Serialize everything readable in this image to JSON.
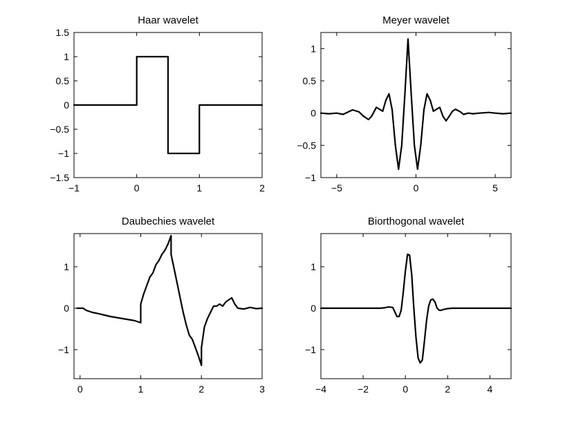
{
  "chart_data": [
    {
      "type": "line",
      "title": "Haar wavelet",
      "xlim": [
        -1,
        2
      ],
      "ylim": [
        -1.5,
        1.5
      ],
      "xticks": [
        -1,
        0,
        1,
        2
      ],
      "xtick_labels": [
        "−1",
        "0",
        "1",
        "2"
      ],
      "yticks": [
        1.5,
        1,
        0.5,
        0,
        -0.5,
        -1,
        -1.5
      ],
      "ytick_labels": [
        "1.5",
        "1",
        "0.5",
        "0",
        "−0.5",
        "−1",
        "−1.5"
      ],
      "series": [
        {
          "x": [
            -1,
            0,
            0,
            0.5,
            0.5,
            1,
            1,
            2
          ],
          "y": [
            0,
            0,
            1,
            1,
            -1,
            -1,
            0,
            0
          ]
        }
      ]
    },
    {
      "type": "line",
      "title": "Meyer wavelet",
      "xlim": [
        -6,
        6
      ],
      "ylim": [
        -1,
        1.25
      ],
      "xticks": [
        -5,
        0,
        5
      ],
      "xtick_labels": [
        "−5",
        "0",
        "5"
      ],
      "yticks": [
        1,
        0.5,
        0,
        -0.5,
        -1
      ],
      "ytick_labels": [
        "1",
        "0.5",
        "0",
        "−0.5",
        "−1"
      ],
      "series": [
        {
          "x": [
            -6,
            -5.5,
            -5,
            -4.6,
            -4,
            -3.6,
            -3.3,
            -3,
            -2.8,
            -2.5,
            -2.3,
            -2.1,
            -1.9,
            -1.7,
            -1.5,
            -1.3,
            -1.1,
            -0.9,
            -0.7,
            -0.5,
            -0.3,
            -0.1,
            0.1,
            0.3,
            0.5,
            0.7,
            0.9,
            1.1,
            1.3,
            1.5,
            1.7,
            1.9,
            2.1,
            2.3,
            2.5,
            2.8,
            3,
            3.3,
            3.6,
            4,
            4.6,
            5,
            5.5,
            6
          ],
          "y": [
            0,
            -0.01,
            0.0,
            -0.02,
            0.05,
            0.02,
            -0.05,
            -0.1,
            -0.05,
            0.09,
            0.06,
            0.03,
            0.2,
            0.3,
            0.05,
            -0.5,
            -0.87,
            -0.5,
            0.3,
            1.15,
            0.3,
            -0.5,
            -0.87,
            -0.5,
            0.05,
            0.3,
            0.2,
            0.03,
            0.06,
            0.09,
            -0.05,
            -0.12,
            -0.05,
            0.03,
            0.06,
            0.02,
            -0.02,
            0.0,
            -0.01,
            0,
            0.01,
            0,
            -0.01,
            0
          ]
        }
      ]
    },
    {
      "type": "line",
      "title": "Daubechies wavelet",
      "xlim": [
        -0.1,
        3
      ],
      "ylim": [
        -1.7,
        1.8
      ],
      "xticks": [
        0,
        1,
        2,
        3
      ],
      "xtick_labels": [
        "0",
        "1",
        "2",
        "3"
      ],
      "yticks": [
        1,
        0,
        -1
      ],
      "ytick_labels": [
        "1",
        "0",
        "−1"
      ],
      "series": [
        {
          "x": [
            -0.05,
            0,
            0.05,
            0.1,
            0.2,
            0.3,
            0.5,
            0.7,
            0.9,
            1.0,
            1.0,
            1.05,
            1.1,
            1.15,
            1.2,
            1.25,
            1.3,
            1.35,
            1.4,
            1.45,
            1.5,
            1.5,
            1.55,
            1.6,
            1.65,
            1.7,
            1.75,
            1.8,
            1.85,
            1.9,
            1.95,
            2.0,
            2.0,
            2.05,
            2.1,
            2.15,
            2.2,
            2.25,
            2.3,
            2.35,
            2.4,
            2.45,
            2.5,
            2.55,
            2.6,
            2.7,
            2.8,
            2.9,
            3.0
          ],
          "y": [
            0,
            0,
            0,
            -0.05,
            -0.1,
            -0.13,
            -0.2,
            -0.25,
            -0.3,
            -0.35,
            0.1,
            0.35,
            0.55,
            0.75,
            0.85,
            1.05,
            1.15,
            1.3,
            1.4,
            1.55,
            1.75,
            1.3,
            0.95,
            0.6,
            0.25,
            -0.1,
            -0.4,
            -0.65,
            -0.75,
            -0.95,
            -1.15,
            -1.38,
            -0.95,
            -0.45,
            -0.25,
            -0.1,
            0.05,
            0.05,
            0.1,
            0.05,
            0.15,
            0.2,
            0.25,
            0.1,
            0.0,
            -0.02,
            0.02,
            -0.01,
            0
          ]
        }
      ]
    },
    {
      "type": "line",
      "title": "Biorthogonal wavelet",
      "xlim": [
        -4,
        5
      ],
      "ylim": [
        -1.7,
        1.8
      ],
      "xticks": [
        -4,
        -2,
        0,
        2,
        4
      ],
      "xtick_labels": [
        "−4",
        "−2",
        "0",
        "2",
        "4"
      ],
      "yticks": [
        1,
        0,
        -1
      ],
      "ytick_labels": [
        "1",
        "0",
        "−1"
      ],
      "series": [
        {
          "x": [
            -4,
            -1.2,
            -1.0,
            -0.8,
            -0.6,
            -0.4,
            -0.3,
            -0.2,
            -0.1,
            0,
            0.1,
            0.2,
            0.3,
            0.4,
            0.5,
            0.6,
            0.7,
            0.8,
            0.9,
            1.0,
            1.1,
            1.2,
            1.3,
            1.4,
            1.5,
            1.6,
            1.7,
            1.8,
            2.0,
            2.2,
            5
          ],
          "y": [
            0,
            0,
            0.01,
            0.03,
            0.02,
            -0.2,
            -0.2,
            -0.05,
            0.4,
            0.9,
            1.3,
            1.28,
            0.8,
            0.0,
            -0.7,
            -1.2,
            -1.32,
            -1.25,
            -0.8,
            -0.3,
            0.05,
            0.2,
            0.22,
            0.15,
            0.0,
            -0.05,
            -0.05,
            -0.03,
            -0.01,
            0,
            0
          ]
        }
      ]
    }
  ]
}
